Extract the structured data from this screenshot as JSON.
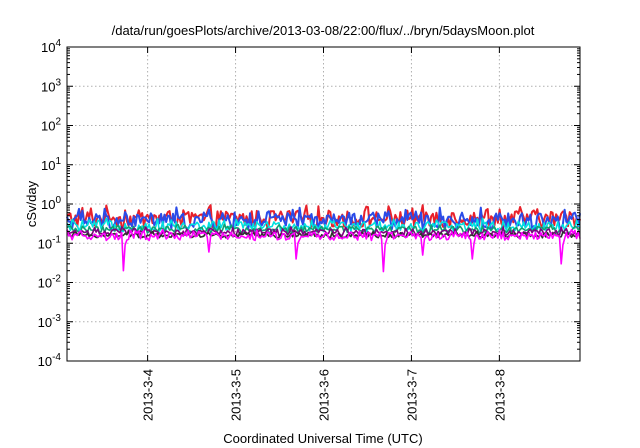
{
  "chart_data": {
    "type": "line",
    "title": "/data/run/goesPlots/archive/2013-03-08/22:00/flux/../bryn/5daysMoon.plot",
    "xlabel": "Coordinated Universal Time (UTC)",
    "ylabel": "cSv/day",
    "yscale": "log",
    "ylim": [
      0.0001,
      10000
    ],
    "y_ticks": [
      {
        "base": "10",
        "exp": "-4",
        "value": 0.0001
      },
      {
        "base": "10",
        "exp": "-3",
        "value": 0.001
      },
      {
        "base": "10",
        "exp": "-2",
        "value": 0.01
      },
      {
        "base": "10",
        "exp": "-1",
        "value": 0.1
      },
      {
        "base": "10",
        "exp": "0",
        "value": 1
      },
      {
        "base": "10",
        "exp": "1",
        "value": 10
      },
      {
        "base": "10",
        "exp": "2",
        "value": 100
      },
      {
        "base": "10",
        "exp": "3",
        "value": 1000
      },
      {
        "base": "10",
        "exp": "4",
        "value": 10000
      }
    ],
    "xlim": [
      "2013-03-03 02:00",
      "2013-03-08 22:00"
    ],
    "x_ticks": [
      {
        "label": "2013-3-4",
        "value": "2013-03-04 00:00"
      },
      {
        "label": "2013-3-5",
        "value": "2013-03-05 00:00"
      },
      {
        "label": "2013-3-6",
        "value": "2013-03-06 00:00"
      },
      {
        "label": "2013-3-7",
        "value": "2013-03-07 00:00"
      },
      {
        "label": "2013-3-8",
        "value": "2013-03-08 00:00"
      }
    ],
    "grid": true,
    "series": [
      {
        "color": "#e8202a",
        "base": 0.42,
        "amp": 0.5,
        "spikes": []
      },
      {
        "color": "#2a4be8",
        "base": 0.37,
        "amp": 0.5,
        "spikes": []
      },
      {
        "color": "#00e0e0",
        "base": 0.27,
        "amp": 0.3,
        "spikes": []
      },
      {
        "color": "#10a070",
        "base": 0.22,
        "amp": 0.2,
        "spikes": []
      },
      {
        "color": "#800080",
        "base": 0.19,
        "amp": 0.2,
        "spikes": []
      },
      {
        "color": "#303030",
        "base": 0.16,
        "amp": 0.15,
        "spikes": []
      },
      {
        "color": "#ff00ff",
        "base": 0.15,
        "amp": 0.25,
        "spikes": [
          {
            "x": "2013-03-03 17:20",
            "y": 0.02
          },
          {
            "x": "2013-03-04 16:45",
            "y": 0.06
          },
          {
            "x": "2013-03-05 16:30",
            "y": 0.04
          },
          {
            "x": "2013-03-06 16:30",
            "y": 0.019
          },
          {
            "x": "2013-03-07 03:00",
            "y": 0.05
          },
          {
            "x": "2013-03-07 16:40",
            "y": 0.04
          },
          {
            "x": "2013-03-08 16:40",
            "y": 0.03
          }
        ]
      }
    ]
  }
}
